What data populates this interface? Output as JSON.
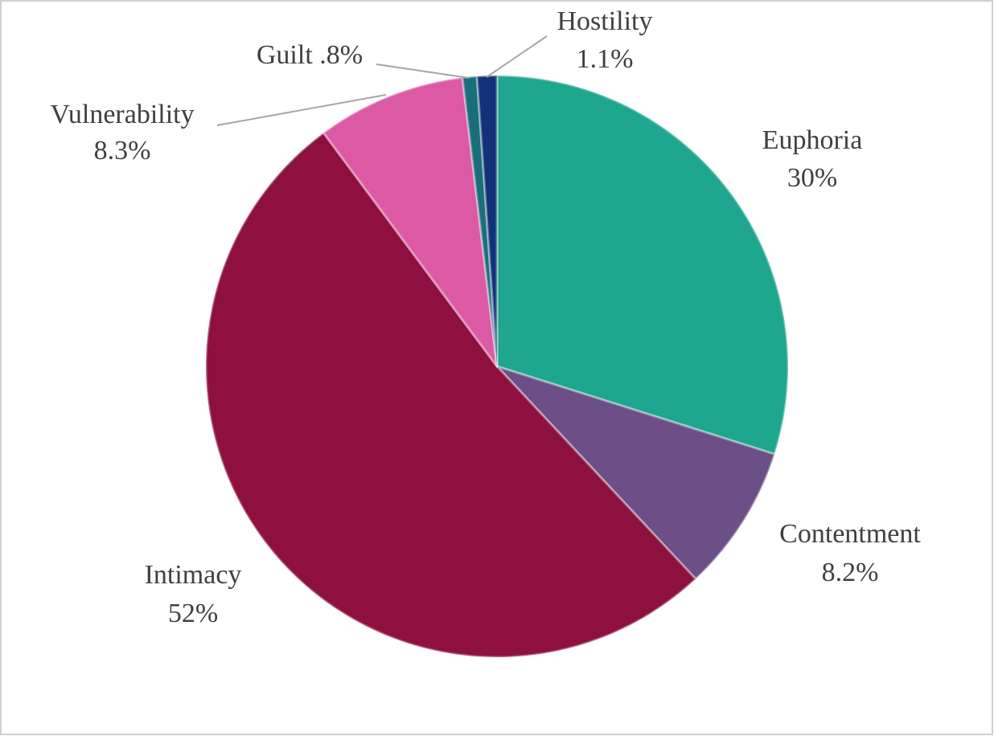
{
  "chart_data": {
    "type": "pie",
    "categories": [
      "Euphoria",
      "Contentment",
      "Intimacy",
      "Vulnerability",
      "Guilt",
      "Hostility"
    ],
    "values": [
      30,
      8.2,
      52,
      8.3,
      0.8,
      1.1
    ],
    "value_labels": [
      "30%",
      "8.2%",
      "52%",
      "8.3%",
      ".8%",
      "1.1%"
    ],
    "colors": [
      "#1fa68f",
      "#6b4f86",
      "#8e103e",
      "#dc5aa3",
      "#1a6e7a",
      "#13307a"
    ]
  }
}
